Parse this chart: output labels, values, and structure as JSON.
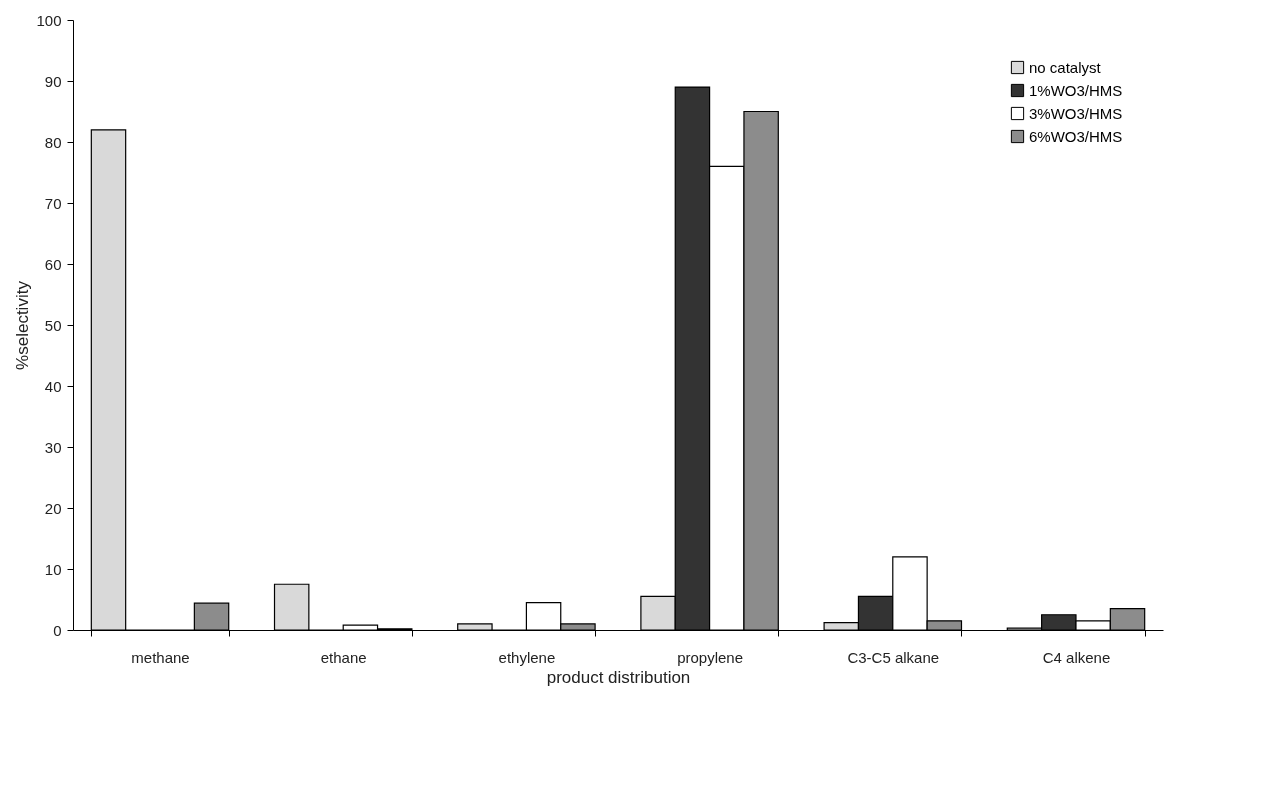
{
  "chart_data": {
    "type": "bar",
    "xlabel": "product distribution",
    "ylabel": "%selectivity",
    "categories": [
      "methane",
      "ethane",
      "ethylene",
      "propylene",
      "C3-C5 alkane",
      "C4 alkene"
    ],
    "series": [
      {
        "name": "no catalyst",
        "color": "#d9d9d9",
        "values": [
          82,
          7.5,
          1,
          5.5,
          1.2,
          0.3
        ]
      },
      {
        "name": "1%WO3/HMS",
        "color": "#333333",
        "values": [
          0,
          0,
          0,
          89,
          5.5,
          2.5
        ]
      },
      {
        "name": "3%WO3/HMS",
        "color": "#ffffff",
        "values": [
          0,
          0.8,
          4.5,
          76,
          12,
          1.5
        ]
      },
      {
        "name": "6%WO3/HMS",
        "color": "#8c8c8c",
        "values": [
          4.4,
          0.2,
          1,
          85,
          1.5,
          3.5
        ]
      }
    ],
    "ylim": [
      0,
      100
    ],
    "yticks": [
      0,
      10,
      20,
      30,
      40,
      50,
      60,
      70,
      80,
      90,
      100
    ],
    "grid": false,
    "legend": "top right"
  }
}
